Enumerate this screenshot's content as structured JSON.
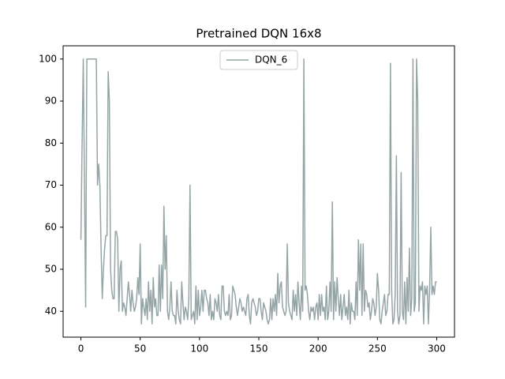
{
  "chart_data": {
    "type": "line",
    "title": "Pretrained DQN 16x8",
    "x": [
      0,
      1,
      2,
      3,
      4,
      5,
      6,
      7,
      8,
      9,
      10,
      11,
      12,
      13,
      14,
      15,
      16,
      17,
      18,
      19,
      20,
      21,
      22,
      23,
      24,
      25,
      26,
      27,
      28,
      29,
      30,
      31,
      32,
      33,
      34,
      35,
      36,
      37,
      38,
      39,
      40,
      41,
      42,
      43,
      44,
      45,
      46,
      47,
      48,
      49,
      50,
      51,
      52,
      53,
      54,
      55,
      56,
      57,
      58,
      59,
      60,
      61,
      62,
      63,
      64,
      65,
      66,
      67,
      68,
      69,
      70,
      71,
      72,
      73,
      74,
      75,
      76,
      77,
      78,
      79,
      80,
      81,
      82,
      83,
      84,
      85,
      86,
      87,
      88,
      89,
      90,
      91,
      92,
      93,
      94,
      95,
      96,
      97,
      98,
      99,
      100,
      101,
      102,
      103,
      104,
      105,
      106,
      107,
      108,
      109,
      110,
      111,
      112,
      113,
      114,
      115,
      116,
      117,
      118,
      119,
      120,
      121,
      122,
      123,
      124,
      125,
      126,
      127,
      128,
      129,
      130,
      131,
      132,
      133,
      134,
      135,
      136,
      137,
      138,
      139,
      140,
      141,
      142,
      143,
      144,
      145,
      146,
      147,
      148,
      149,
      150,
      151,
      152,
      153,
      154,
      155,
      156,
      157,
      158,
      159,
      160,
      161,
      162,
      163,
      164,
      165,
      166,
      167,
      168,
      169,
      170,
      171,
      172,
      173,
      174,
      175,
      176,
      177,
      178,
      179,
      180,
      181,
      182,
      183,
      184,
      185,
      186,
      187,
      188,
      189,
      190,
      191,
      192,
      193,
      194,
      195,
      196,
      197,
      198,
      199,
      200,
      201,
      202,
      203,
      204,
      205,
      206,
      207,
      208,
      209,
      210,
      211,
      212,
      213,
      214,
      215,
      216,
      217,
      218,
      219,
      220,
      221,
      222,
      223,
      224,
      225,
      226,
      227,
      228,
      229,
      230,
      231,
      232,
      233,
      234,
      235,
      236,
      237,
      238,
      239,
      240,
      241,
      242,
      243,
      244,
      245,
      246,
      247,
      248,
      249,
      250,
      251,
      252,
      253,
      254,
      255,
      256,
      257,
      258,
      259,
      260,
      261,
      262,
      263,
      264,
      265,
      266,
      267,
      268,
      269,
      270,
      271,
      272,
      273,
      274,
      275,
      276,
      277,
      278,
      279,
      280,
      281,
      282,
      283,
      284,
      285,
      286,
      287,
      288,
      289,
      290,
      291,
      292,
      293,
      294,
      295,
      296,
      297,
      298,
      299,
      300
    ],
    "series": [
      {
        "name": "DQN_6",
        "color": "#95a5a6",
        "values": [
          57,
          80,
          100,
          70,
          41,
          100,
          100,
          100,
          100,
          100,
          100,
          100,
          100,
          100,
          70,
          75,
          70,
          55,
          43,
          50,
          55,
          58,
          58,
          97,
          90,
          50,
          45,
          43,
          43,
          59,
          59,
          57,
          40,
          50,
          52,
          40,
          42,
          41,
          39,
          43,
          47,
          44,
          40,
          45,
          42,
          40,
          41,
          43,
          48,
          44,
          56,
          37,
          43,
          41,
          39,
          43,
          38,
          47,
          40,
          45,
          37,
          48,
          41,
          43,
          39,
          39,
          51,
          40,
          51,
          43,
          65,
          50,
          58,
          40,
          38,
          41,
          47,
          40,
          39,
          39,
          37,
          45,
          40,
          38,
          37,
          47,
          42,
          38,
          41,
          40,
          38,
          43,
          70,
          38,
          39,
          40,
          37,
          46,
          38,
          45,
          39,
          41,
          45,
          40,
          45,
          45,
          43,
          42,
          39,
          44,
          38,
          40,
          38,
          43,
          42,
          40,
          44,
          39,
          38,
          46,
          46,
          40,
          39,
          40,
          39,
          44,
          38,
          39,
          46,
          45,
          44,
          41,
          39,
          41,
          43,
          42,
          40,
          41,
          40,
          39,
          43,
          44,
          39,
          37,
          42,
          43,
          42,
          41,
          39,
          40,
          43,
          43,
          40,
          38,
          42,
          41,
          40,
          38,
          37,
          38,
          43,
          38,
          43,
          40,
          44,
          39,
          49,
          42,
          46,
          47,
          41,
          40,
          39,
          40,
          56,
          42,
          40,
          39,
          38,
          45,
          40,
          44,
          39,
          47,
          42,
          38,
          46,
          40,
          100,
          45,
          46,
          44,
          40,
          38,
          41,
          40,
          41,
          38,
          41,
          42,
          38,
          44,
          39,
          44,
          40,
          41,
          38,
          46,
          38,
          40,
          47,
          40,
          66,
          38,
          47,
          40,
          48,
          43,
          39,
          44,
          38,
          41,
          44,
          39,
          41,
          38,
          45,
          37,
          42,
          40,
          40,
          38,
          47,
          39,
          57,
          45,
          56,
          39,
          56,
          40,
          45,
          44,
          41,
          42,
          38,
          40,
          43,
          42,
          39,
          41,
          49,
          45,
          38,
          37,
          40,
          42,
          44,
          39,
          40,
          44,
          44,
          99,
          45,
          37,
          38,
          44,
          77,
          40,
          37,
          39,
          73,
          40,
          38,
          47,
          37,
          48,
          40,
          55,
          39,
          43,
          100,
          40,
          42,
          100,
          90,
          40,
          46,
          45,
          47,
          37,
          46,
          44,
          46,
          37,
          45,
          60,
          44,
          46,
          44,
          47,
          47
        ]
      }
    ],
    "xlim": [
      -15,
      315
    ],
    "ylim": [
      33.85,
      103.15
    ],
    "xticks": [
      0,
      50,
      100,
      150,
      200,
      250,
      300
    ],
    "yticks": [
      40,
      50,
      60,
      70,
      80,
      90,
      100
    ],
    "legend": "upper center"
  }
}
